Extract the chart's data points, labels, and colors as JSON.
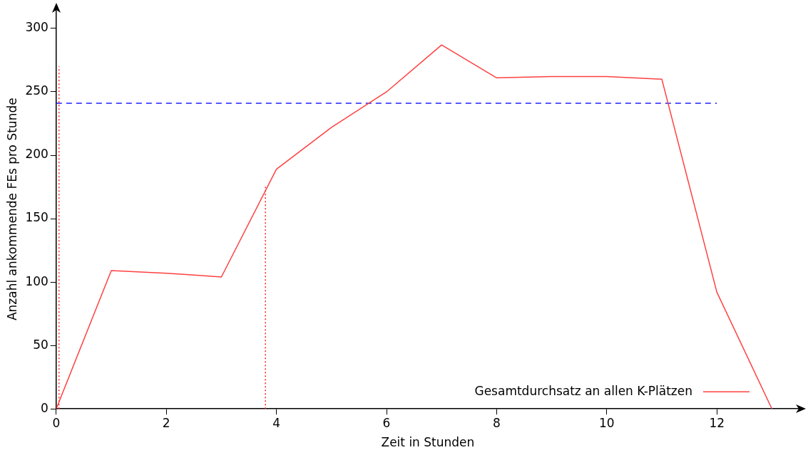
{
  "chart_data": {
    "type": "line",
    "xlabel": "Zeit in Stunden",
    "ylabel": "Anzahl ankommende FEs pro Stunde",
    "xlim": [
      0,
      13.5
    ],
    "ylim": [
      0,
      315
    ],
    "xticks": [
      0,
      2,
      4,
      6,
      8,
      10,
      12
    ],
    "yticks": [
      0,
      50,
      100,
      150,
      200,
      250,
      300
    ],
    "grid": false,
    "legend": "bottom right",
    "marker": "none",
    "series": [
      {
        "name": "Gesamtdurchsatz an allen K-Plätzen",
        "color": "#ff4040",
        "line_style": "solid",
        "x": [
          0,
          1,
          2,
          3,
          4,
          5,
          6,
          7,
          8,
          9,
          10,
          11,
          12,
          13
        ],
        "values": [
          0,
          109,
          107,
          104,
          189,
          222,
          250,
          287,
          261,
          262,
          262,
          260,
          92,
          0
        ]
      },
      {
        "color": "#2020ff",
        "line_style": "dashed",
        "x": [
          0,
          12
        ],
        "values": [
          241,
          241
        ]
      },
      {
        "color": "#ff2020",
        "line_style": "dotted",
        "x": [
          0.05,
          0.05
        ],
        "values": [
          0,
          270
        ]
      },
      {
        "color": "#ff2020",
        "line_style": "dotted",
        "x": [
          3.8,
          3.8
        ],
        "values": [
          0,
          175
        ]
      }
    ]
  }
}
